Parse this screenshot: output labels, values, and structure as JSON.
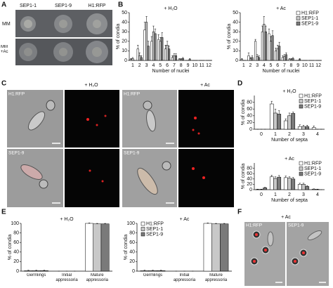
{
  "panel_letters": [
    "A",
    "B",
    "C",
    "D",
    "E",
    "F"
  ],
  "panel_a": {
    "strains": [
      "SEP1-1",
      "SEP1-9",
      "H1:RFP"
    ],
    "media": [
      "MM",
      "MM +Ac"
    ]
  },
  "panel_c": {
    "conditions": [
      "+ H₂O",
      "+ Ac"
    ],
    "strains": [
      "H1:RFP",
      "SEP1-9"
    ]
  },
  "panel_f": {
    "condition": "+ Ac",
    "strains": [
      "H1:RFP",
      "SEP1-9"
    ]
  },
  "chart_data": [
    {
      "type": "bar",
      "title": "+ H₂O",
      "xlabel": "Number of nuclei",
      "ylabel": "% of condia",
      "categories": [
        "1",
        "2",
        "3",
        "4",
        "5",
        "6",
        "7",
        "8",
        "9",
        "10",
        "11",
        "12"
      ],
      "ylim": [
        0,
        50
      ],
      "yticks": [
        0,
        10,
        20,
        30,
        40,
        50
      ],
      "series": [
        {
          "color": "#ffffff",
          "values": [
            1,
            12,
            32,
            20,
            22,
            12,
            3,
            1,
            0,
            0,
            0,
            0
          ],
          "errors": [
            1,
            4,
            8,
            5,
            5,
            4,
            2,
            1,
            0,
            0,
            0,
            0
          ]
        },
        {
          "color": "#c8c8c8",
          "values": [
            2,
            5,
            40,
            30,
            20,
            16,
            5,
            1,
            0,
            0,
            0,
            0
          ],
          "errors": [
            1,
            3,
            6,
            6,
            4,
            4,
            2,
            1,
            0,
            0,
            0,
            0
          ]
        },
        {
          "color": "#7a7a7a",
          "values": [
            0,
            3,
            15,
            28,
            24,
            12,
            5,
            2,
            1,
            0,
            0,
            0
          ],
          "errors": [
            0,
            2,
            5,
            5,
            5,
            3,
            2,
            1,
            1,
            0,
            0,
            0
          ]
        }
      ]
    },
    {
      "type": "bar",
      "title": "+ Ac",
      "xlabel": "Number of nuclei",
      "ylabel": "% of condia",
      "categories": [
        "1",
        "2",
        "3",
        "4",
        "5",
        "6",
        "7",
        "8",
        "9",
        "10",
        "11",
        "12"
      ],
      "ylim": [
        0,
        50
      ],
      "yticks": [
        0,
        10,
        20,
        30,
        40,
        50
      ],
      "legend": "upper right",
      "series": [
        {
          "name": "H1:RFP",
          "color": "#ffffff",
          "values": [
            1,
            5,
            20,
            30,
            28,
            10,
            3,
            1,
            0,
            0,
            0,
            0
          ],
          "errors": [
            1,
            3,
            2,
            6,
            5,
            3,
            2,
            1,
            0,
            0,
            0,
            0
          ]
        },
        {
          "name": "SEP1-1",
          "color": "#c8c8c8",
          "values": [
            0,
            2,
            4,
            38,
            20,
            12,
            4,
            1,
            0,
            0,
            0,
            0
          ],
          "errors": [
            0,
            1,
            2,
            8,
            5,
            4,
            2,
            1,
            0,
            0,
            0,
            0
          ]
        },
        {
          "name": "SEP1-9",
          "color": "#7a7a7a",
          "values": [
            0,
            3,
            3,
            30,
            26,
            15,
            6,
            2,
            1,
            0,
            0,
            0
          ],
          "errors": [
            0,
            2,
            2,
            6,
            5,
            4,
            2,
            1,
            1,
            0,
            0,
            0
          ]
        }
      ]
    },
    {
      "type": "bar",
      "title": "+ H₂O",
      "xlabel": "Number of septa",
      "ylabel": "% of condia",
      "categories": [
        "0",
        "1",
        "2",
        "3",
        "4"
      ],
      "ylim": [
        0,
        100
      ],
      "yticks": [
        0,
        20,
        40,
        60,
        80
      ],
      "legend": "upper right",
      "series": [
        {
          "name": "H1:RFP",
          "color": "#ffffff",
          "values": [
            0,
            75,
            25,
            8,
            5
          ],
          "errors": [
            0,
            8,
            6,
            5,
            5
          ]
        },
        {
          "name": "SEP1-1",
          "color": "#c8c8c8",
          "values": [
            0,
            48,
            40,
            8,
            0
          ],
          "errors": [
            0,
            12,
            8,
            4,
            0
          ]
        },
        {
          "name": "SEP1-9",
          "color": "#7a7a7a",
          "values": [
            0,
            45,
            47,
            8,
            0
          ],
          "errors": [
            0,
            10,
            4,
            4,
            0
          ]
        }
      ]
    },
    {
      "type": "bar",
      "title": "+ Ac",
      "xlabel": "Number of septa",
      "ylabel": "% of condia",
      "categories": [
        "0",
        "1",
        "2",
        "3",
        "4"
      ],
      "ylim": [
        0,
        100
      ],
      "yticks": [
        0,
        20,
        40,
        60,
        80
      ],
      "legend": "upper right",
      "series": [
        {
          "name": "H1:RFP",
          "color": "#ffffff",
          "values": [
            1,
            48,
            45,
            20,
            2
          ],
          "errors": [
            1,
            6,
            6,
            4,
            1
          ]
        },
        {
          "name": "SEP1-1",
          "color": "#c8c8c8",
          "values": [
            1,
            42,
            43,
            20,
            1
          ],
          "errors": [
            1,
            6,
            5,
            4,
            1
          ]
        },
        {
          "name": "SEP1-9",
          "color": "#7a7a7a",
          "values": [
            7,
            47,
            40,
            12,
            0
          ],
          "errors": [
            2,
            6,
            6,
            3,
            0
          ]
        }
      ]
    },
    {
      "type": "bar",
      "title": "+ H₂O",
      "ylabel": "% of condia",
      "categories": [
        "Germlings",
        "Initial appressoria",
        "Mature appressoria"
      ],
      "ylim": [
        0,
        100
      ],
      "yticks": [
        0,
        20,
        40,
        60,
        80,
        100
      ],
      "series": [
        {
          "color": "#ffffff",
          "values": [
            1,
            0,
            100
          ],
          "errors": [
            1,
            0,
            1
          ]
        },
        {
          "color": "#c8c8c8",
          "values": [
            1,
            0,
            99
          ],
          "errors": [
            1,
            0,
            1
          ]
        },
        {
          "color": "#7a7a7a",
          "values": [
            1,
            0,
            99
          ],
          "errors": [
            1,
            0,
            1
          ]
        }
      ]
    },
    {
      "type": "bar",
      "title": "+ Ac",
      "ylabel": "% of condia",
      "categories": [
        "Germlings",
        "Initial appressoria",
        "Mature appressoria"
      ],
      "ylim": [
        0,
        100
      ],
      "yticks": [
        0,
        20,
        40,
        60,
        80,
        100
      ],
      "legend": "upper left",
      "series": [
        {
          "name": "H1:RFP",
          "color": "#ffffff",
          "values": [
            1,
            0,
            100
          ],
          "errors": [
            1,
            0,
            1
          ]
        },
        {
          "name": "SEP1-1",
          "color": "#c8c8c8",
          "values": [
            1,
            0,
            99
          ],
          "errors": [
            1,
            0,
            1
          ]
        },
        {
          "name": "SEP1-9",
          "color": "#7a7a7a",
          "values": [
            1,
            0,
            99
          ],
          "errors": [
            1,
            0,
            1
          ]
        }
      ]
    }
  ]
}
